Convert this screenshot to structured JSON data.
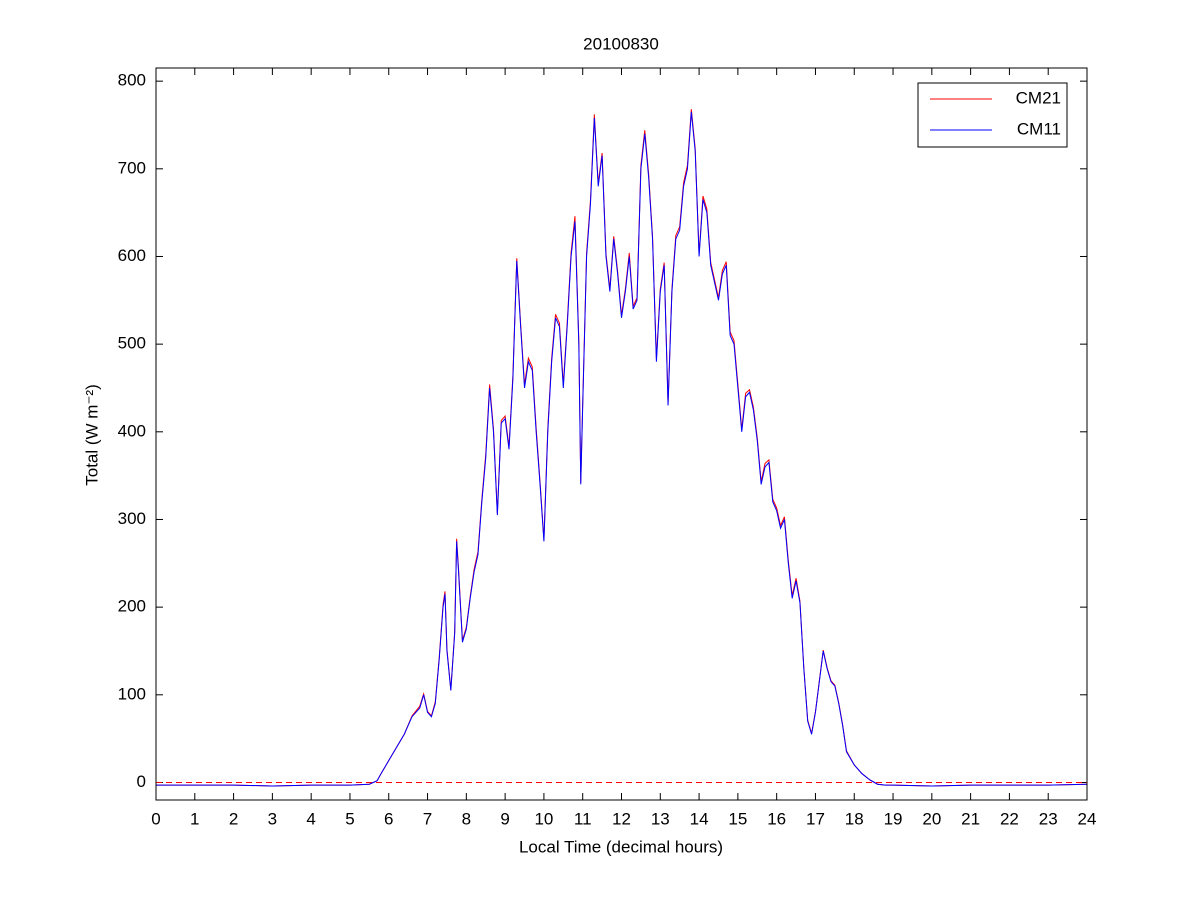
{
  "chart_data": {
    "type": "line",
    "title": "20100830",
    "xlabel": "Local Time (decimal hours)",
    "ylabel": "Total (W m⁻²)",
    "x": [
      0,
      1,
      2,
      3,
      4,
      5,
      5.5,
      5.7,
      5.8,
      6.0,
      6.2,
      6.4,
      6.6,
      6.8,
      6.9,
      7.0,
      7.1,
      7.2,
      7.3,
      7.4,
      7.45,
      7.5,
      7.6,
      7.7,
      7.75,
      7.8,
      7.9,
      8.0,
      8.1,
      8.2,
      8.3,
      8.4,
      8.5,
      8.6,
      8.7,
      8.8,
      8.9,
      9.0,
      9.1,
      9.2,
      9.3,
      9.4,
      9.5,
      9.6,
      9.7,
      9.8,
      9.9,
      10.0,
      10.1,
      10.2,
      10.3,
      10.4,
      10.5,
      10.6,
      10.7,
      10.8,
      10.9,
      10.95,
      11.0,
      11.1,
      11.2,
      11.3,
      11.4,
      11.5,
      11.6,
      11.7,
      11.8,
      11.9,
      12.0,
      12.1,
      12.2,
      12.3,
      12.4,
      12.5,
      12.6,
      12.7,
      12.8,
      12.9,
      13.0,
      13.1,
      13.2,
      13.3,
      13.4,
      13.5,
      13.6,
      13.7,
      13.8,
      13.9,
      14.0,
      14.1,
      14.2,
      14.3,
      14.4,
      14.5,
      14.6,
      14.7,
      14.8,
      14.9,
      15.0,
      15.1,
      15.2,
      15.3,
      15.4,
      15.5,
      15.6,
      15.7,
      15.8,
      15.9,
      16.0,
      16.1,
      16.2,
      16.3,
      16.4,
      16.5,
      16.6,
      16.7,
      16.8,
      16.9,
      17.0,
      17.1,
      17.2,
      17.3,
      17.4,
      17.5,
      17.6,
      17.7,
      17.8,
      18.0,
      18.2,
      18.4,
      18.6,
      18.8,
      19,
      20,
      21,
      22,
      23,
      24
    ],
    "series": [
      {
        "name": "CM21",
        "color": "#ff0000",
        "values": [
          -3,
          -3,
          -3,
          -4,
          -3,
          -3,
          -2,
          2,
          10,
          25,
          40,
          55,
          76,
          87,
          101,
          81,
          76,
          92,
          142,
          203,
          218,
          152,
          106,
          172,
          278,
          243,
          162,
          177,
          212,
          243,
          263,
          323,
          374,
          454,
          403,
          307,
          413,
          418,
          383,
          464,
          598,
          523,
          454,
          484,
          474,
          404,
          343,
          277,
          404,
          484,
          534,
          524,
          454,
          524,
          604,
          646,
          504,
          342,
          433,
          604,
          664,
          762,
          683,
          718,
          603,
          563,
          623,
          583,
          533,
          563,
          604,
          543,
          553,
          704,
          744,
          694,
          623,
          483,
          563,
          593,
          433,
          563,
          624,
          634,
          684,
          704,
          768,
          723,
          603,
          669,
          654,
          593,
          573,
          553,
          584,
          594,
          514,
          504,
          454,
          403,
          444,
          448,
          428,
          393,
          343,
          364,
          368,
          323,
          313,
          293,
          303,
          253,
          213,
          233,
          207,
          131,
          71,
          56,
          81,
          116,
          151,
          131,
          116,
          111,
          91,
          66,
          36,
          20,
          10,
          3,
          -2,
          -3,
          -3,
          -4,
          -3,
          -3,
          -3,
          -2
        ]
      },
      {
        "name": "CM11",
        "color": "#0000ff",
        "values": [
          -3,
          -3,
          -3,
          -4,
          -3,
          -3,
          -2,
          2,
          10,
          25,
          40,
          55,
          75,
          85,
          100,
          80,
          75,
          90,
          140,
          200,
          215,
          150,
          105,
          170,
          275,
          240,
          160,
          175,
          210,
          240,
          260,
          320,
          370,
          450,
          400,
          305,
          410,
          415,
          380,
          460,
          595,
          520,
          450,
          480,
          470,
          400,
          340,
          275,
          400,
          480,
          530,
          520,
          450,
          520,
          600,
          640,
          500,
          340,
          430,
          600,
          660,
          758,
          680,
          715,
          600,
          560,
          620,
          580,
          530,
          560,
          600,
          540,
          550,
          700,
          740,
          690,
          620,
          480,
          560,
          590,
          430,
          560,
          620,
          630,
          680,
          700,
          765,
          720,
          600,
          665,
          650,
          590,
          570,
          550,
          580,
          590,
          510,
          500,
          450,
          400,
          440,
          445,
          425,
          390,
          340,
          360,
          365,
          320,
          310,
          290,
          300,
          250,
          210,
          230,
          205,
          130,
          70,
          55,
          80,
          115,
          150,
          130,
          115,
          110,
          90,
          65,
          35,
          20,
          10,
          3,
          -2,
          -3,
          -3,
          -4,
          -3,
          -3,
          -3,
          -2
        ]
      }
    ],
    "hline": {
      "value": 0,
      "color": "#ff0000",
      "style": "dashed"
    },
    "xlim": [
      0,
      24
    ],
    "xticks": [
      0,
      1,
      2,
      3,
      4,
      5,
      6,
      7,
      8,
      9,
      10,
      11,
      12,
      13,
      14,
      15,
      16,
      17,
      18,
      19,
      20,
      21,
      22,
      23,
      24
    ],
    "ylim": [
      -20,
      815
    ],
    "yticks": [
      0,
      100,
      200,
      300,
      400,
      500,
      600,
      700,
      800
    ],
    "legend": "upper right",
    "grid": false
  }
}
